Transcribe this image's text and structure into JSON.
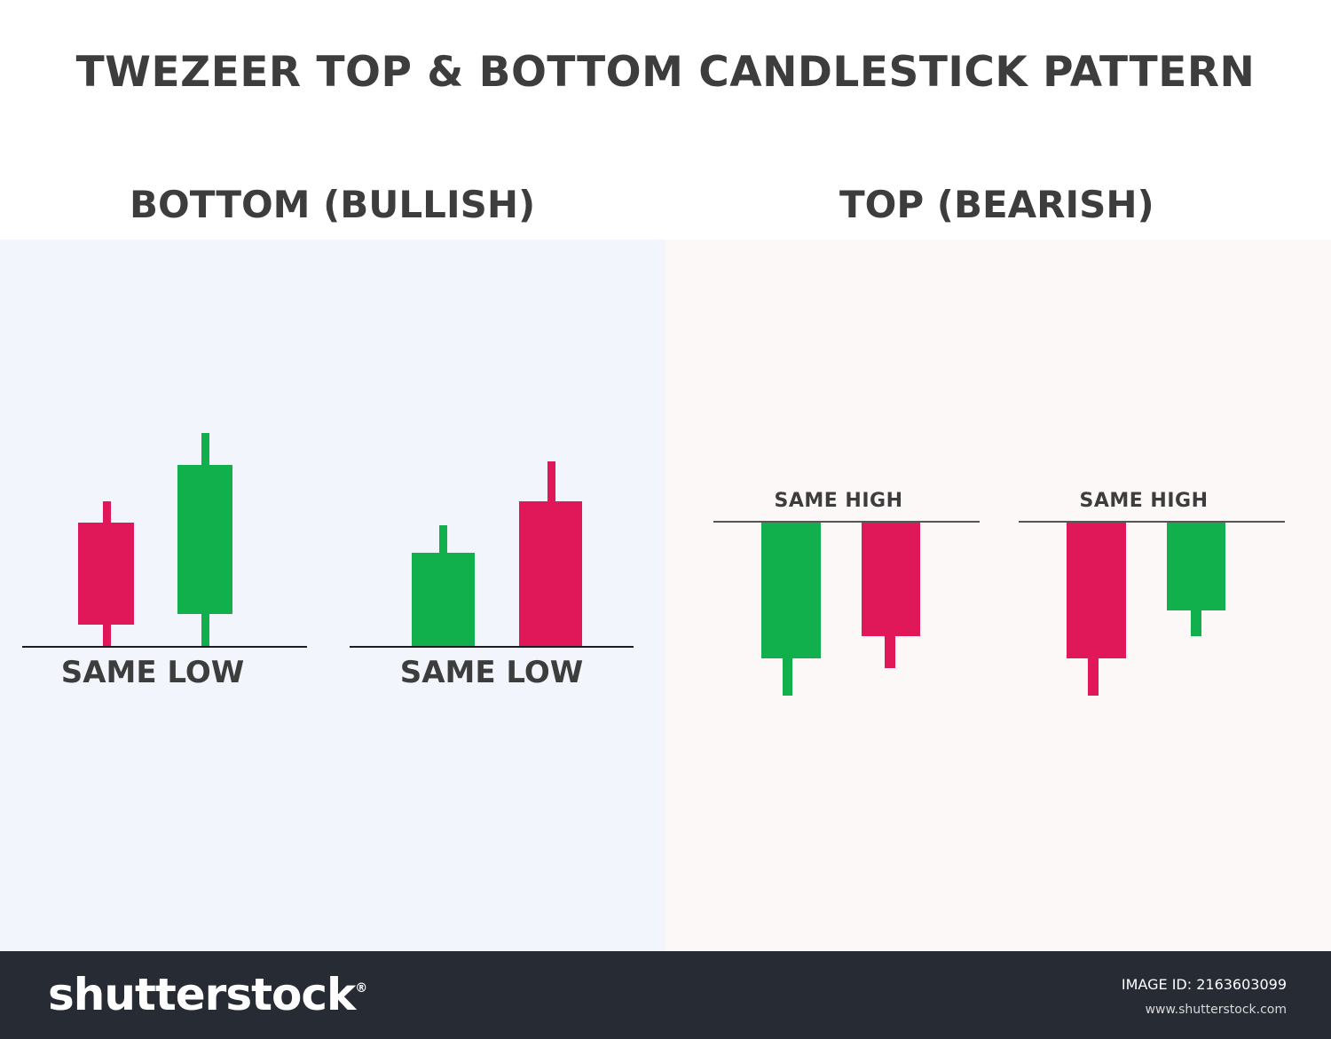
{
  "title": "TWEZEER TOP & BOTTOM CANDLESTICK PATTERN",
  "sections": {
    "bottom": {
      "heading": "BOTTOM (BULLISH)",
      "reference_label_1": "SAME LOW",
      "reference_label_2": "SAME LOW"
    },
    "top": {
      "heading": "TOP (BEARISH)",
      "reference_label_1": "SAME HIGH",
      "reference_label_2": "SAME HIGH"
    }
  },
  "footer": {
    "brand": "shutterstock",
    "image_id": "IMAGE ID: 2163603099",
    "site": "www.shutterstock.com"
  },
  "colors": {
    "bullish": "#12b04c",
    "bearish": "#e0185a",
    "text": "#3d3d3d",
    "bottom_panel_bg": "#f2f5fb",
    "top_panel_bg": "#fcf8f8"
  }
}
